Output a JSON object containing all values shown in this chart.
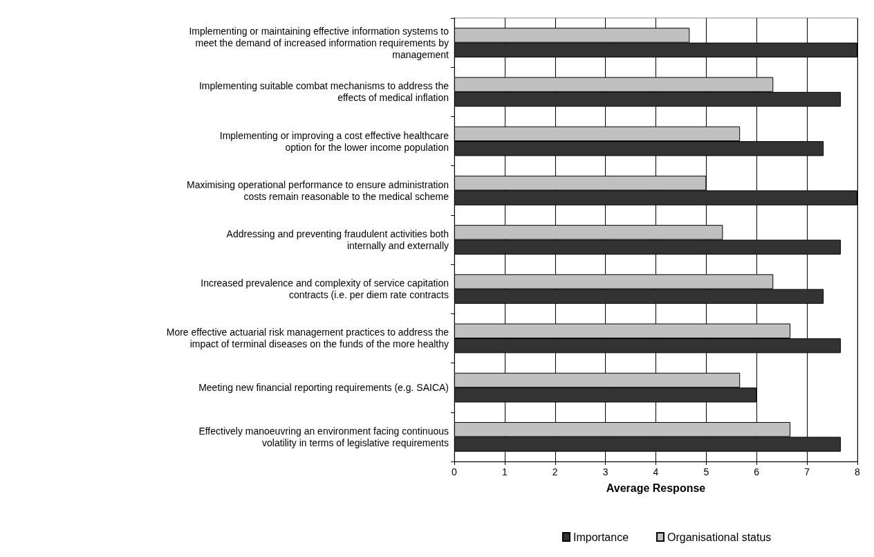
{
  "chart_data": {
    "type": "bar",
    "orientation": "horizontal",
    "categories": [
      "Implementing or maintaining effective information systems to\nmeet the demand of increased information requirements by\nmanagement",
      "Implementing suitable combat mechanisms to address the\neffects of medical inflation",
      "Implementing or improving a cost effective healthcare\noption for the lower income population",
      "Maximising operational performance to ensure administration\ncosts remain reasonable to the medical scheme",
      "Addressing and preventing fraudulent activities both\ninternally and externally",
      "Increased prevalence and complexity of service capitation\ncontracts (i.e. per diem rate contracts",
      "More effective actuarial risk management practices to address the\nimpact of terminal diseases on the funds of the more healthy",
      "Meeting new financial reporting requirements (e.g. SAICA)",
      "Effectively manoeuvring an environment facing continuous\nvolatility in terms of legislative requirements"
    ],
    "series": [
      {
        "name": "Importance",
        "color": "#333333",
        "values": [
          8,
          7.67,
          7.33,
          8,
          7.67,
          7.33,
          7.67,
          6,
          7.67
        ]
      },
      {
        "name": "Organisational status",
        "color": "#c0c0c0",
        "values": [
          4.67,
          6.33,
          5.67,
          5,
          5.33,
          6.33,
          6.67,
          5.67,
          6.67
        ]
      }
    ],
    "xlabel": "Average Response",
    "xlim": [
      0,
      8
    ],
    "xticks": [
      0,
      1,
      2,
      3,
      4,
      5,
      6,
      7,
      8
    ],
    "grid": "x",
    "legend": "bottom"
  }
}
